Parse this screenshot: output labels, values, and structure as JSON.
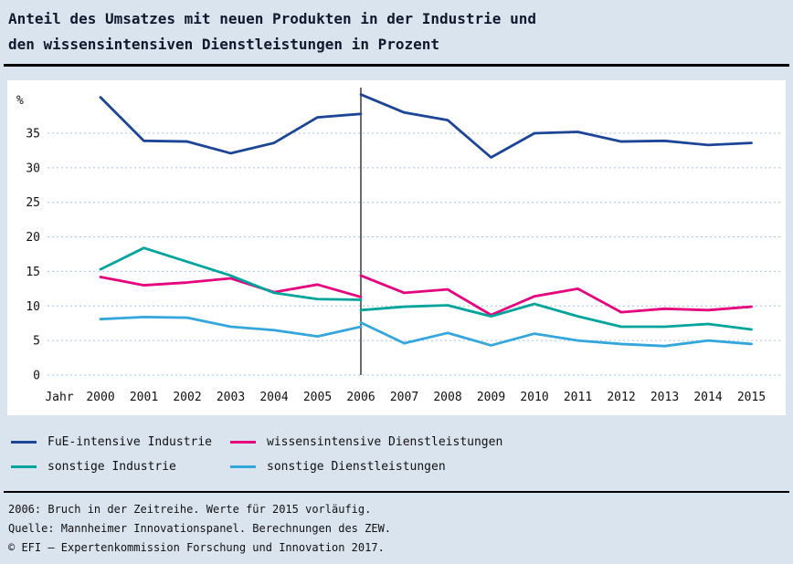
{
  "title": {
    "line1": "Anteil des Umsatzes mit neuen Produkten in der Industrie und",
    "line2": "den wissensintensiven Dienstleistungen in Prozent"
  },
  "chart_data": {
    "type": "line",
    "unit_label": "%",
    "x_axis_label": "Jahr",
    "years": [
      2000,
      2001,
      2002,
      2003,
      2004,
      2005,
      2006,
      2007,
      2008,
      2009,
      2010,
      2011,
      2012,
      2013,
      2014,
      2015
    ],
    "y_ticks": [
      0,
      5,
      10,
      15,
      20,
      25,
      30,
      35
    ],
    "ylim": [
      0,
      42
    ],
    "grid": true,
    "legend_position": "bottom",
    "break_year": 2006,
    "break_note": "2006: Bruch in der Zeitreihe",
    "series": [
      {
        "name": "FuE-intensive Industrie",
        "color": "#1c4598",
        "values_2000_2006": [
          40.2,
          33.9,
          33.8,
          32.1,
          33.6,
          37.3,
          37.8
        ],
        "values_2006_2015": [
          40.6,
          38.0,
          36.9,
          31.5,
          35.0,
          35.2,
          33.8,
          33.9,
          33.3,
          33.6
        ]
      },
      {
        "name": "wissensintensive Dienstleistungen",
        "color": "#e5047e",
        "values_2000_2006": [
          14.2,
          13.0,
          13.4,
          14.0,
          12.0,
          13.1,
          11.3
        ],
        "values_2006_2015": [
          14.4,
          11.9,
          12.4,
          8.7,
          11.4,
          12.5,
          9.1,
          9.6,
          9.4,
          9.9
        ]
      },
      {
        "name": "sonstige Industrie",
        "color": "#00a49d",
        "values_2000_2006": [
          15.3,
          18.4,
          16.4,
          14.4,
          11.9,
          11.0,
          10.9
        ],
        "values_2006_2015": [
          9.4,
          9.9,
          10.1,
          8.5,
          10.3,
          8.5,
          7.0,
          7.0,
          7.4,
          6.6
        ]
      },
      {
        "name": "sonstige Dienstleistungen",
        "color": "#33a7dd",
        "values_2000_2006": [
          8.1,
          8.4,
          8.3,
          7.0,
          6.5,
          5.6,
          7.0
        ],
        "values_2006_2015": [
          7.6,
          4.6,
          6.1,
          4.3,
          6.0,
          5.0,
          4.5,
          4.2,
          5.0,
          4.5
        ]
      }
    ]
  },
  "footnotes": {
    "line1": "2006: Bruch in der Zeitreihe. Werte für 2015 vorläufig.",
    "line2": "Quelle: Mannheimer Innovationspanel. Berechnungen des ZEW.",
    "line3": "© EFI – Expertenkommission Forschung und Innovation 2017."
  }
}
